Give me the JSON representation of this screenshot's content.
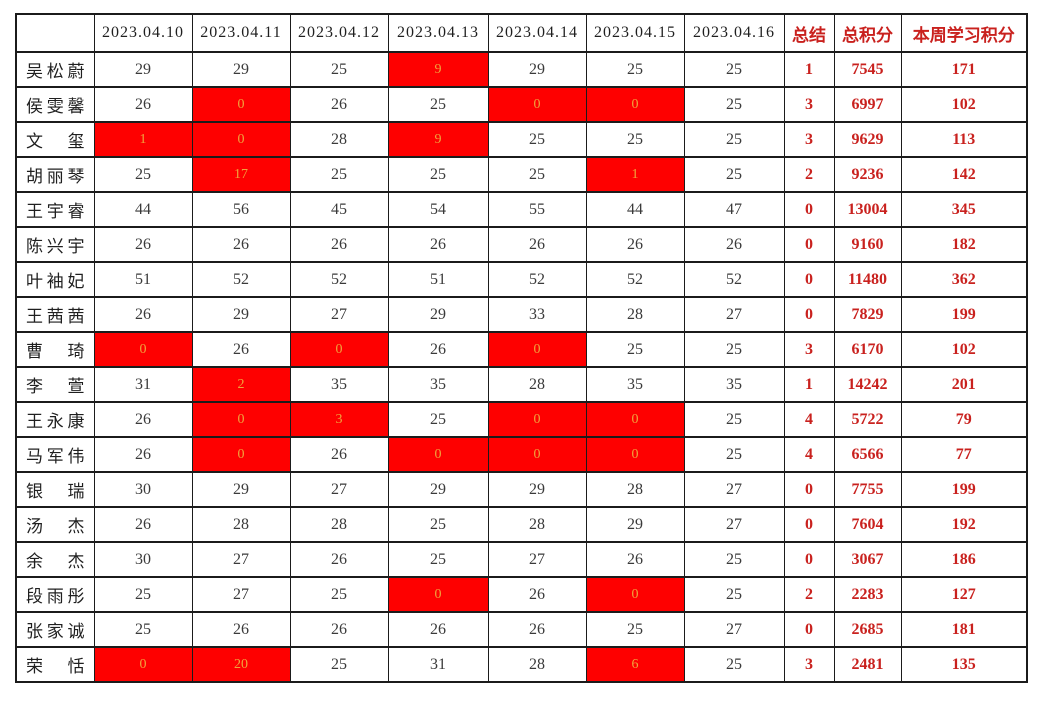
{
  "table": {
    "corner_label": "",
    "date_headers": [
      "2023.04.10",
      "2023.04.11",
      "2023.04.12",
      "2023.04.13",
      "2023.04.14",
      "2023.04.15",
      "2023.04.16"
    ],
    "summary_headers": [
      "总结",
      "总积分",
      "本周学习积分"
    ],
    "rows": [
      {
        "name": "吴松蔚",
        "scores": [
          29,
          29,
          25,
          9,
          29,
          25,
          25
        ],
        "red": [
          3
        ],
        "summary": 1,
        "total": 7545,
        "week": 171
      },
      {
        "name": "侯雯馨",
        "scores": [
          26,
          0,
          26,
          25,
          0,
          0,
          25
        ],
        "red": [
          1,
          4,
          5
        ],
        "summary": 3,
        "total": 6997,
        "week": 102
      },
      {
        "name": "文玺",
        "scores": [
          1,
          0,
          28,
          9,
          25,
          25,
          25
        ],
        "red": [
          0,
          1,
          3
        ],
        "summary": 3,
        "total": 9629,
        "week": 113
      },
      {
        "name": "胡丽琴",
        "scores": [
          25,
          17,
          25,
          25,
          25,
          1,
          25
        ],
        "red": [
          1,
          5
        ],
        "summary": 2,
        "total": 9236,
        "week": 142
      },
      {
        "name": "王宇睿",
        "scores": [
          44,
          56,
          45,
          54,
          55,
          44,
          47
        ],
        "red": [],
        "summary": 0,
        "total": 13004,
        "week": 345
      },
      {
        "name": "陈兴宇",
        "scores": [
          26,
          26,
          26,
          26,
          26,
          26,
          26
        ],
        "red": [],
        "summary": 0,
        "total": 9160,
        "week": 182
      },
      {
        "name": "叶袖妃",
        "scores": [
          51,
          52,
          52,
          51,
          52,
          52,
          52
        ],
        "red": [],
        "summary": 0,
        "total": 11480,
        "week": 362
      },
      {
        "name": "王茜茜",
        "scores": [
          26,
          29,
          27,
          29,
          33,
          28,
          27
        ],
        "red": [],
        "summary": 0,
        "total": 7829,
        "week": 199
      },
      {
        "name": "曹琦",
        "scores": [
          0,
          26,
          0,
          26,
          0,
          25,
          25
        ],
        "red": [
          0,
          2,
          4
        ],
        "summary": 3,
        "total": 6170,
        "week": 102
      },
      {
        "name": "李萱",
        "scores": [
          31,
          2,
          35,
          35,
          28,
          35,
          35
        ],
        "red": [
          1
        ],
        "summary": 1,
        "total": 14242,
        "week": 201
      },
      {
        "name": "王永康",
        "scores": [
          26,
          0,
          3,
          25,
          0,
          0,
          25
        ],
        "red": [
          1,
          2,
          4,
          5
        ],
        "summary": 4,
        "total": 5722,
        "week": 79
      },
      {
        "name": "马军伟",
        "scores": [
          26,
          0,
          26,
          0,
          0,
          0,
          25
        ],
        "red": [
          1,
          3,
          4,
          5
        ],
        "summary": 4,
        "total": 6566,
        "week": 77
      },
      {
        "name": "银瑞",
        "scores": [
          30,
          29,
          27,
          29,
          29,
          28,
          27
        ],
        "red": [],
        "summary": 0,
        "total": 7755,
        "week": 199
      },
      {
        "name": "汤杰",
        "scores": [
          26,
          28,
          28,
          25,
          28,
          29,
          27
        ],
        "red": [],
        "summary": 0,
        "total": 7604,
        "week": 192
      },
      {
        "name": "余杰",
        "scores": [
          30,
          27,
          26,
          25,
          27,
          26,
          25
        ],
        "red": [],
        "summary": 0,
        "total": 3067,
        "week": 186
      },
      {
        "name": "段雨彤",
        "scores": [
          25,
          27,
          25,
          0,
          26,
          0,
          25
        ],
        "red": [
          3,
          5
        ],
        "summary": 2,
        "total": 2283,
        "week": 127
      },
      {
        "name": "张家诚",
        "scores": [
          25,
          26,
          26,
          26,
          26,
          25,
          27
        ],
        "red": [],
        "summary": 0,
        "total": 2685,
        "week": 181
      },
      {
        "name": "荣恬",
        "scores": [
          0,
          20,
          25,
          31,
          28,
          6,
          25
        ],
        "red": [
          0,
          1,
          5
        ],
        "summary": 3,
        "total": 2481,
        "week": 135
      }
    ]
  },
  "colors": {
    "highlight_bg": "#fe0000",
    "highlight_text": "#f0a33c",
    "accent_text": "#c9211e",
    "score_text": "#3a3a3a",
    "border": "#1b1b1b"
  }
}
